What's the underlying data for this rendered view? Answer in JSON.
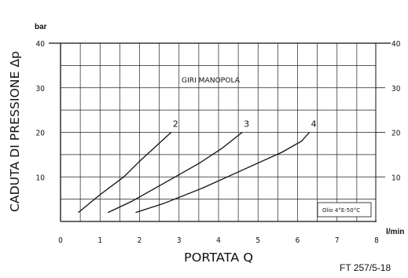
{
  "chart_data": {
    "type": "line",
    "xlabel": "PORTATA Q",
    "ylabel": "CADUTA DI PRESSIONE Δp",
    "x_unit": "l/min",
    "y_unit": "bar",
    "xlim": [
      0,
      8
    ],
    "ylim": [
      0,
      40
    ],
    "x_ticks": [
      "0",
      "1",
      "2",
      "3",
      "4",
      "5",
      "6",
      "7",
      "8"
    ],
    "y_ticks": [
      "10",
      "20",
      "30",
      "40"
    ],
    "y_ticks_right": [
      "10",
      "20",
      "30",
      "40"
    ],
    "annotation": "GIRI MANOPOLA",
    "oil_note": "Olio 4°E-50°C",
    "grid": true,
    "series": [
      {
        "name": "2",
        "x": [
          0.45,
          1.0,
          1.6,
          2.0,
          2.8
        ],
        "y": [
          2,
          6,
          10,
          13.5,
          20
        ]
      },
      {
        "name": "3",
        "x": [
          1.2,
          1.8,
          2.6,
          3.5,
          4.1,
          4.6
        ],
        "y": [
          2,
          4.5,
          8.5,
          13,
          16.5,
          20
        ]
      },
      {
        "name": "4",
        "x": [
          1.9,
          2.6,
          3.6,
          4.6,
          5.6,
          6.1,
          6.3
        ],
        "y": [
          2,
          4,
          7.5,
          11.5,
          15.5,
          18,
          20
        ]
      }
    ]
  },
  "footer": {
    "code": "FT 257/5-18"
  }
}
